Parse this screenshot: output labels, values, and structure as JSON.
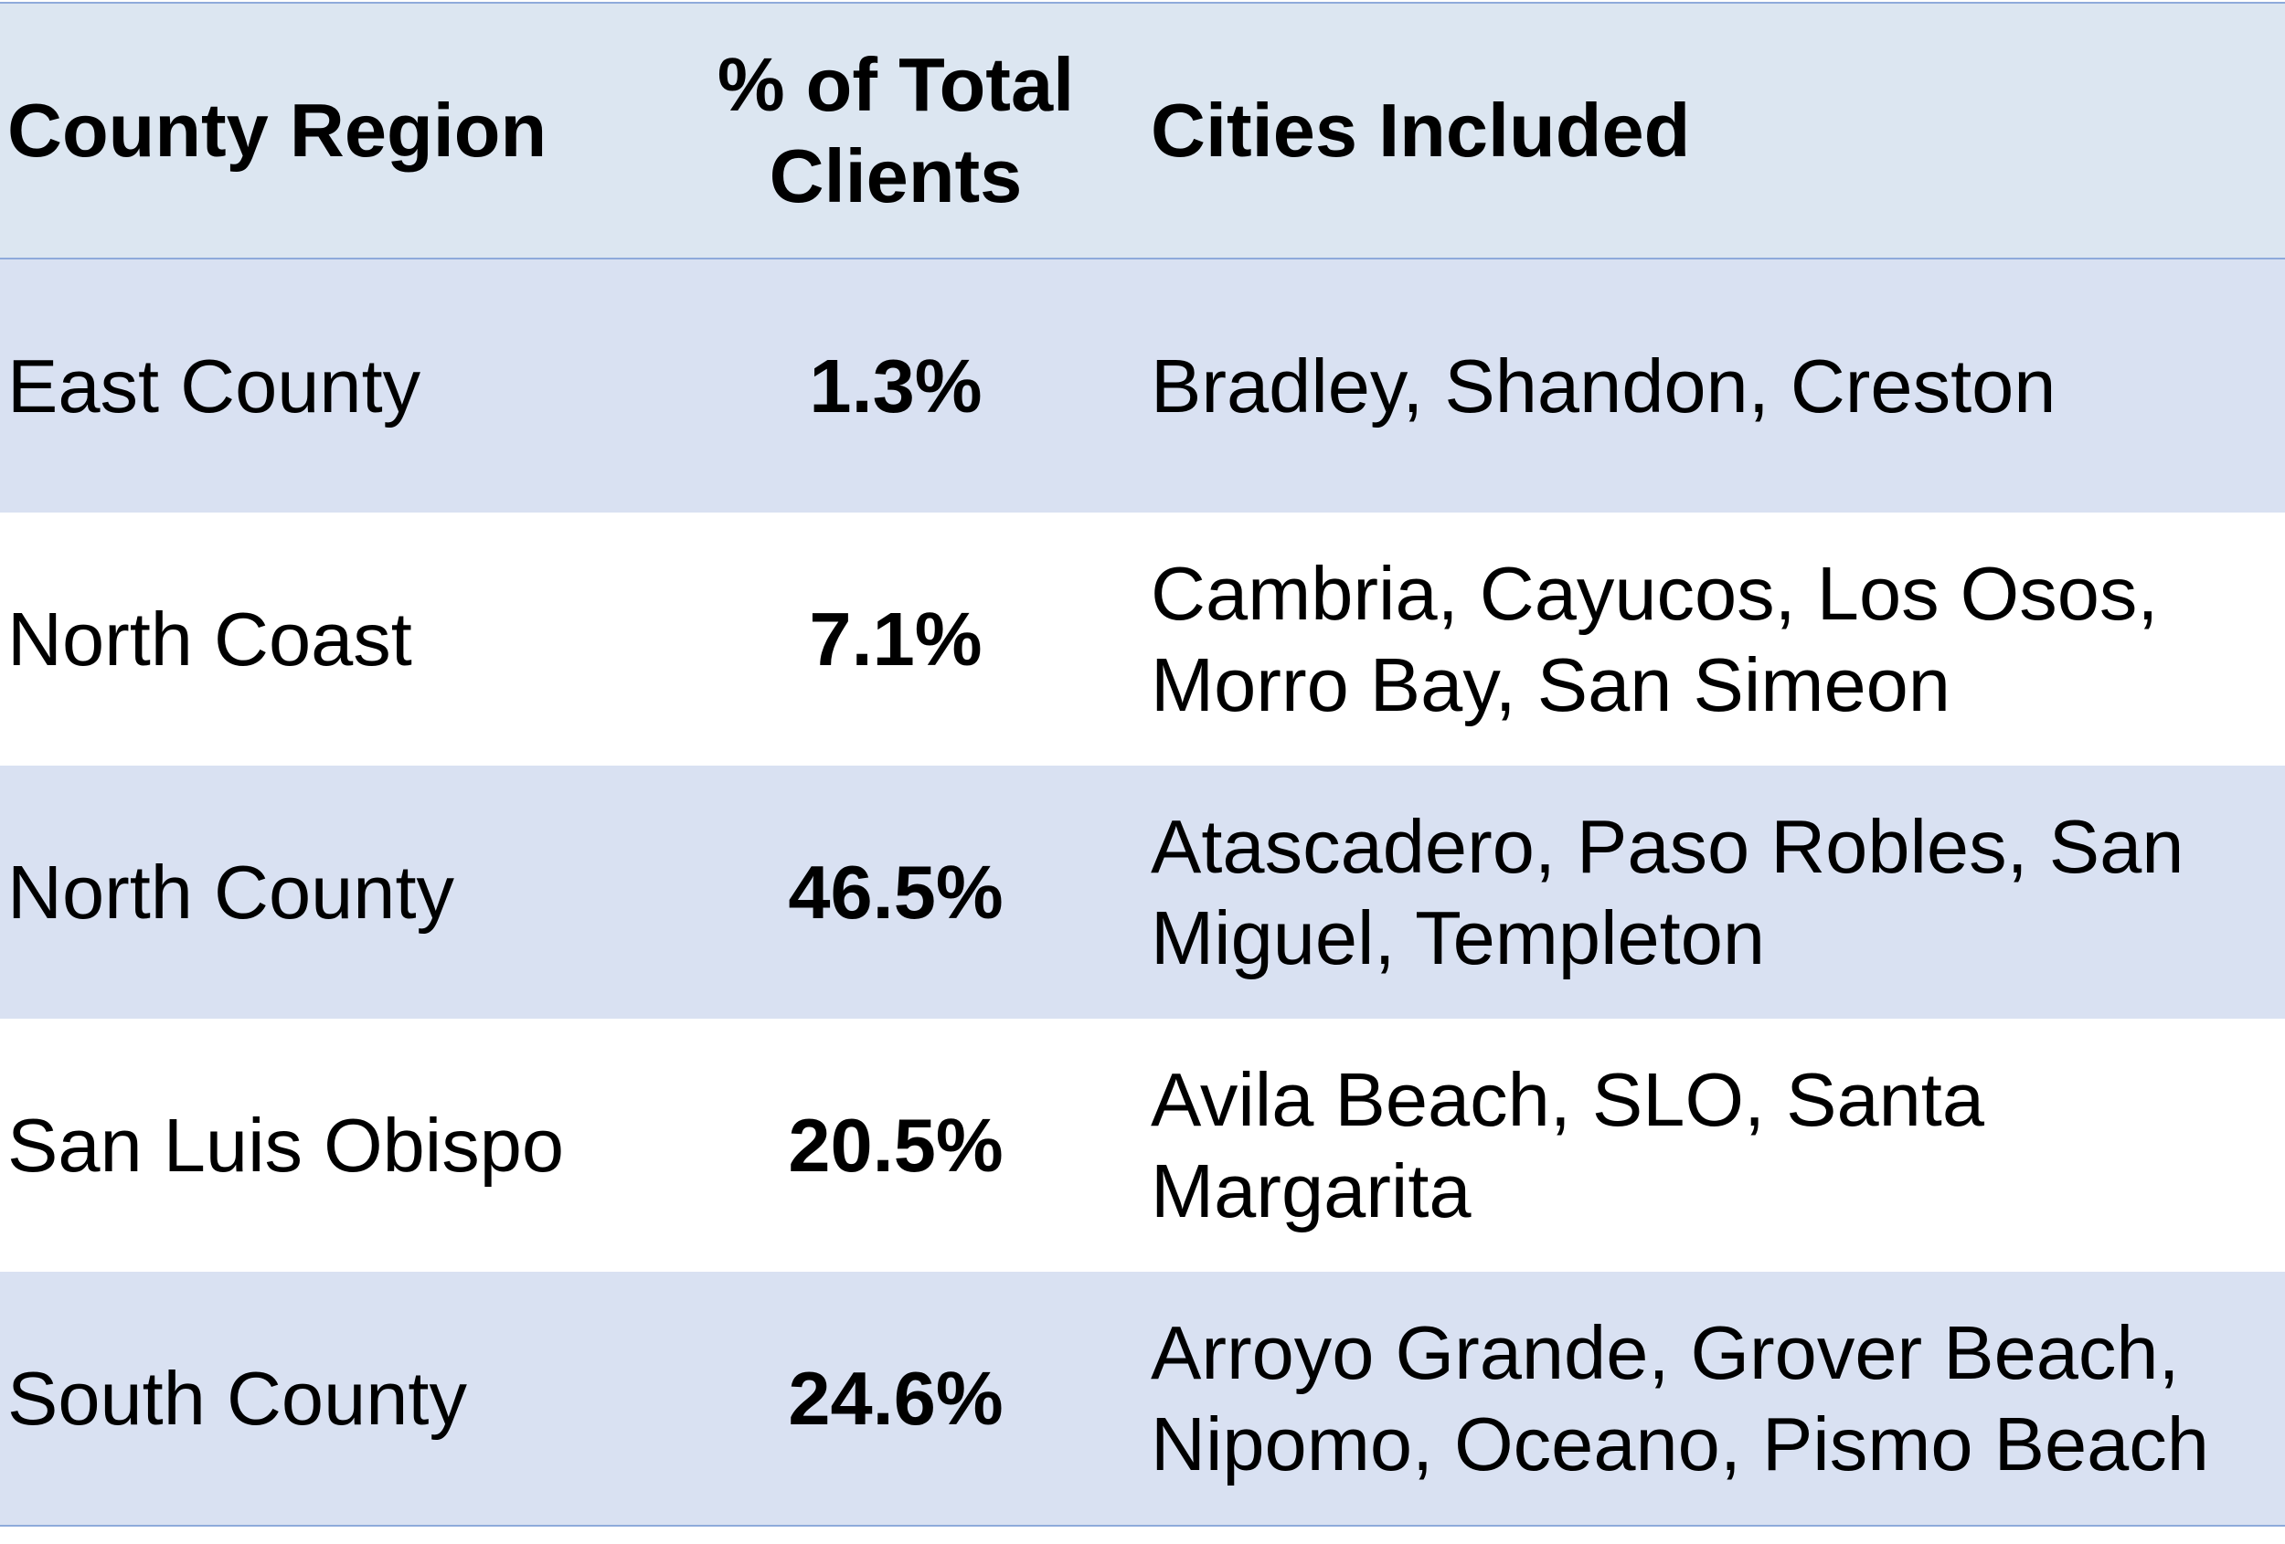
{
  "table": {
    "headers": [
      "County Region",
      "% of Total Clients",
      "Cities Included"
    ],
    "rows": [
      [
        "East County",
        "1.3%",
        "Bradley, Shandon, Creston"
      ],
      [
        "North Coast",
        "7.1%",
        "Cambria, Cayucos, Los Osos, Morro Bay, San Simeon"
      ],
      [
        "North County",
        "46.5%",
        "Atascadero, Paso Robles, San Miguel, Templeton"
      ],
      [
        "San Luis Obispo",
        "20.5%",
        "Avila Beach, SLO, Santa Margarita"
      ],
      [
        "South County",
        "24.6%",
        "Arroyo Grande, Grover Beach, Nipomo, Oceano, Pismo Beach"
      ]
    ]
  }
}
